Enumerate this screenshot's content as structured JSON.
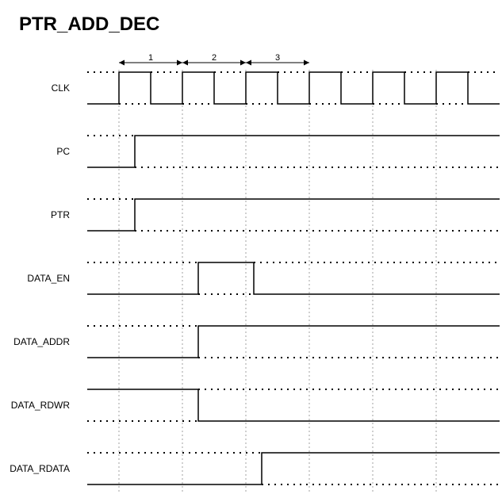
{
  "title": "PTR_ADD_DEC",
  "cycle_labels": [
    "1",
    "2",
    "3"
  ],
  "colors": {
    "stroke": "#000000",
    "guide": "#a0a0a0",
    "background": "#ffffff"
  },
  "signals": [
    {
      "name": "CLK",
      "kind": "clock",
      "initial": 0,
      "first_rise_cycle": 1
    },
    {
      "name": "PC",
      "kind": "step",
      "initial": 0,
      "transitions": [
        {
          "cycle": 1.5,
          "level": 1
        }
      ]
    },
    {
      "name": "PTR",
      "kind": "step",
      "initial": 0,
      "transitions": [
        {
          "cycle": 1.5,
          "level": 1
        }
      ]
    },
    {
      "name": "DATA_EN",
      "kind": "step",
      "initial": 0,
      "transitions": [
        {
          "cycle": 3.5,
          "level": 1
        },
        {
          "cycle": 5.25,
          "level": 0
        }
      ]
    },
    {
      "name": "DATA_ADDR",
      "kind": "step",
      "initial": 0,
      "transitions": [
        {
          "cycle": 3.5,
          "level": 1
        }
      ]
    },
    {
      "name": "DATA_RDWR",
      "kind": "step",
      "initial": 1,
      "transitions": [
        {
          "cycle": 3.5,
          "level": 0
        }
      ]
    },
    {
      "name": "DATA_RDATA",
      "kind": "step",
      "initial": 0,
      "transitions": [
        {
          "cycle": 5.5,
          "level": 1
        }
      ]
    }
  ]
}
